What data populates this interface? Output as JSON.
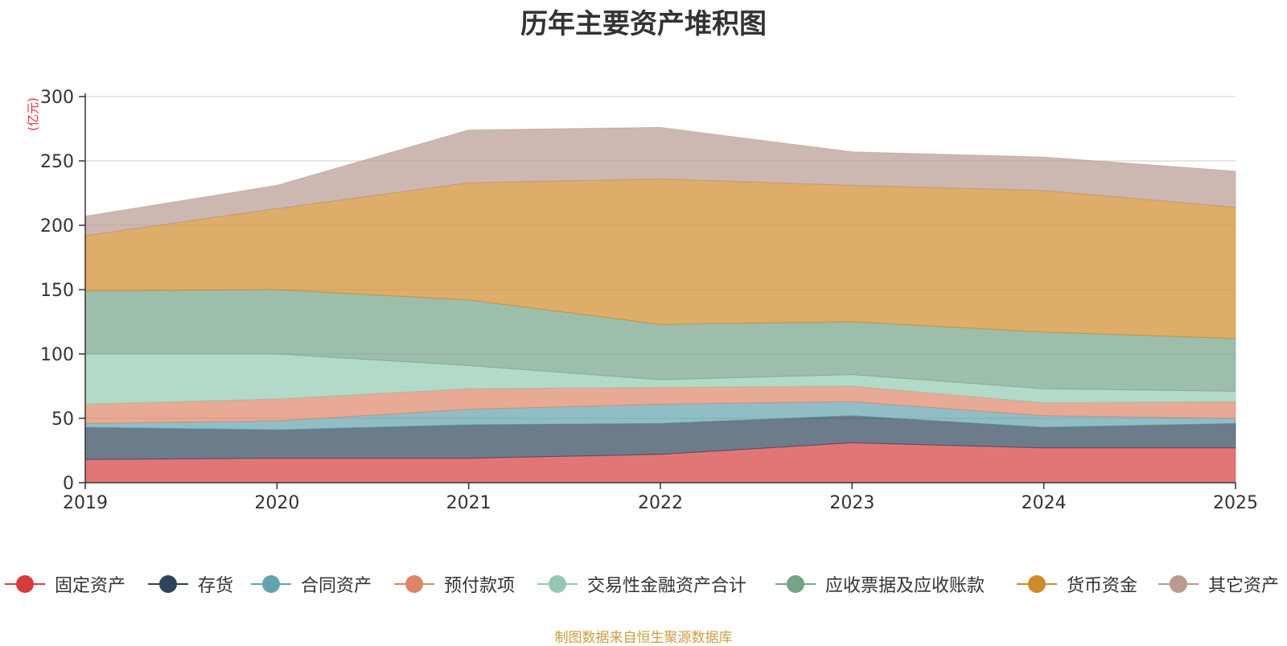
{
  "title": "历年主要资产堆积图",
  "source_note": "制图数据来自恒生聚源数据库",
  "chart_data": {
    "type": "area",
    "stacked": true,
    "title": "历年主要资产堆积图",
    "ylabel": "(亿元)",
    "xlabel": "",
    "categories": [
      "2019",
      "2020",
      "2021",
      "2022",
      "2023",
      "2024",
      "2025"
    ],
    "ylim": [
      0,
      300
    ],
    "yticks": [
      0,
      50,
      100,
      150,
      200,
      250,
      300
    ],
    "grid": true,
    "legend_position": "bottom",
    "series": [
      {
        "name": "固定资产",
        "color": "#d63c3c",
        "values": [
          18,
          19,
          19,
          22,
          31,
          27,
          27
        ]
      },
      {
        "name": "存货",
        "color": "#2e4459",
        "values": [
          25,
          22,
          26,
          24,
          21,
          16,
          19
        ]
      },
      {
        "name": "合同资产",
        "color": "#62a3ad",
        "values": [
          3,
          7,
          12,
          15,
          11,
          9,
          4
        ]
      },
      {
        "name": "预付款项",
        "color": "#de8568",
        "values": [
          15,
          17,
          16,
          13,
          12,
          10,
          13
        ]
      },
      {
        "name": "交易性金融资产合计",
        "color": "#93c9b0",
        "values": [
          39,
          35,
          18,
          6,
          9,
          11,
          8
        ]
      },
      {
        "name": "应收票据及应收账款",
        "color": "#74a388",
        "values": [
          49,
          50,
          51,
          43,
          41,
          44,
          41
        ]
      },
      {
        "name": "货币资金",
        "color": "#cf8a2a",
        "values": [
          43,
          63,
          91,
          113,
          106,
          110,
          102
        ]
      },
      {
        "name": "其它资产",
        "color": "#b89a90",
        "values": [
          15,
          18,
          41,
          40,
          26,
          26,
          28
        ]
      }
    ]
  }
}
